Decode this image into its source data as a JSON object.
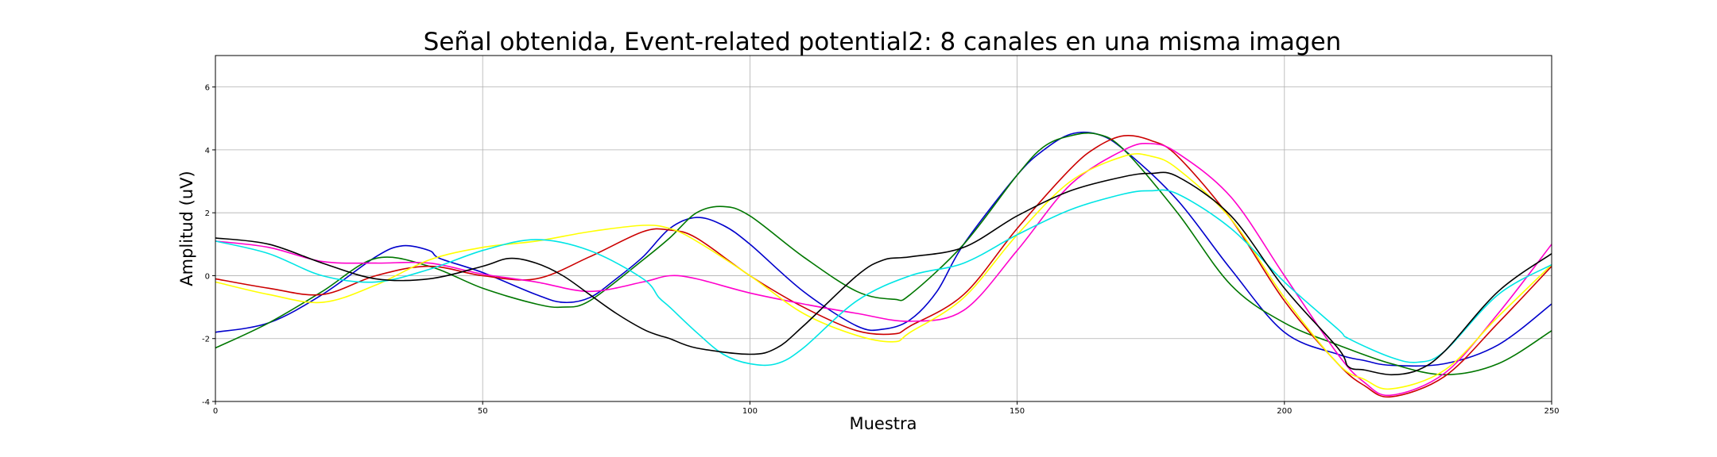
{
  "chart_data": {
    "type": "line",
    "title": "Señal obtenida, Event-related potential2: 8 canales en una misma imagen",
    "xlabel": "Muestra",
    "ylabel": "Amplitud (uV)",
    "xlim": [
      0,
      250
    ],
    "ylim": [
      -4,
      7
    ],
    "xticks": [
      0,
      50,
      100,
      150,
      200,
      250
    ],
    "yticks": [
      -4,
      -2,
      0,
      2,
      4,
      6
    ],
    "grid": true,
    "legend": "none",
    "series": [
      {
        "color": "#0000cc",
        "x": [
          0,
          10,
          20,
          30,
          35,
          40,
          42,
          50,
          60,
          65,
          70,
          75,
          80,
          85,
          90,
          95,
          100,
          110,
          120,
          125,
          130,
          135,
          140,
          150,
          155,
          160,
          165,
          170,
          180,
          190,
          200,
          210,
          215,
          220,
          230,
          240,
          250
        ],
        "y": [
          -1.8,
          -1.5,
          -0.6,
          0.6,
          0.95,
          0.8,
          0.55,
          0.1,
          -0.6,
          -0.85,
          -0.7,
          -0.1,
          0.6,
          1.5,
          1.85,
          1.6,
          1.0,
          -0.5,
          -1.6,
          -1.7,
          -1.4,
          -0.5,
          1.0,
          3.2,
          4.0,
          4.5,
          4.5,
          4.0,
          2.4,
          0.2,
          -1.8,
          -2.5,
          -2.7,
          -2.85,
          -2.8,
          -2.2,
          -0.9
        ]
      },
      {
        "color": "#007700",
        "x": [
          0,
          10,
          20,
          30,
          40,
          50,
          60,
          65,
          70,
          80,
          85,
          90,
          95,
          100,
          110,
          120,
          127,
          130,
          140,
          150,
          155,
          160,
          165,
          170,
          180,
          190,
          200,
          210,
          220,
          230,
          240,
          250
        ],
        "y": [
          -2.3,
          -1.5,
          -0.5,
          0.55,
          0.3,
          -0.4,
          -0.9,
          -1.0,
          -0.8,
          0.5,
          1.2,
          2.0,
          2.2,
          1.9,
          0.6,
          -0.5,
          -0.75,
          -0.6,
          1.0,
          3.2,
          4.1,
          4.45,
          4.5,
          4.0,
          2.0,
          -0.3,
          -1.5,
          -2.2,
          -2.8,
          -3.15,
          -2.8,
          -1.75
        ]
      },
      {
        "color": "#cc0000",
        "x": [
          0,
          10,
          20,
          30,
          40,
          50,
          60,
          70,
          80,
          85,
          90,
          100,
          110,
          120,
          127,
          130,
          140,
          150,
          160,
          165,
          170,
          175,
          180,
          190,
          200,
          210,
          215,
          220,
          230,
          240,
          250
        ],
        "y": [
          -0.1,
          -0.4,
          -0.6,
          0.0,
          0.3,
          0.0,
          -0.1,
          0.6,
          1.4,
          1.45,
          1.2,
          0.0,
          -1.0,
          -1.75,
          -1.85,
          -1.6,
          -0.6,
          1.5,
          3.4,
          4.1,
          4.45,
          4.3,
          3.8,
          1.8,
          -0.8,
          -2.8,
          -3.5,
          -3.85,
          -3.2,
          -1.5,
          0.3
        ]
      },
      {
        "color": "#ff00cc",
        "x": [
          0,
          10,
          20,
          30,
          40,
          50,
          60,
          70,
          80,
          85,
          90,
          100,
          110,
          120,
          130,
          140,
          150,
          160,
          170,
          175,
          180,
          190,
          200,
          210,
          215,
          220,
          230,
          240,
          250
        ],
        "y": [
          1.1,
          0.9,
          0.45,
          0.4,
          0.4,
          0.05,
          -0.2,
          -0.5,
          -0.2,
          0.0,
          -0.1,
          -0.55,
          -0.9,
          -1.2,
          -1.45,
          -1.1,
          0.8,
          2.9,
          4.0,
          4.2,
          3.9,
          2.5,
          0.0,
          -2.5,
          -3.4,
          -3.8,
          -3.1,
          -1.2,
          1.0
        ]
      },
      {
        "color": "#ffff00",
        "x": [
          0,
          10,
          20,
          30,
          40,
          50,
          60,
          70,
          80,
          85,
          90,
          100,
          110,
          120,
          127,
          130,
          140,
          150,
          160,
          170,
          175,
          180,
          190,
          200,
          210,
          215,
          220,
          230,
          240,
          250
        ],
        "y": [
          -0.2,
          -0.6,
          -0.85,
          -0.3,
          0.5,
          0.9,
          1.1,
          1.4,
          1.6,
          1.5,
          1.1,
          0.0,
          -1.2,
          -1.9,
          -2.1,
          -1.8,
          -0.7,
          1.3,
          3.0,
          3.8,
          3.8,
          3.4,
          1.8,
          -0.7,
          -2.8,
          -3.3,
          -3.6,
          -3.0,
          -1.3,
          0.35
        ]
      },
      {
        "color": "#00e5e5",
        "x": [
          0,
          10,
          20,
          30,
          40,
          50,
          60,
          70,
          80,
          83,
          85,
          90,
          95,
          100,
          105,
          110,
          120,
          130,
          140,
          150,
          160,
          170,
          175,
          180,
          190,
          200,
          210,
          212,
          220,
          225,
          230,
          240,
          250
        ],
        "y": [
          1.1,
          0.7,
          0.0,
          -0.2,
          0.2,
          0.8,
          1.15,
          0.8,
          -0.1,
          -0.7,
          -1.0,
          -1.8,
          -2.5,
          -2.8,
          -2.8,
          -2.3,
          -0.8,
          0.0,
          0.4,
          1.3,
          2.1,
          2.6,
          2.7,
          2.6,
          1.5,
          -0.2,
          -1.7,
          -2.0,
          -2.6,
          -2.75,
          -2.4,
          -0.6,
          0.35
        ]
      },
      {
        "color": "#000000",
        "x": [
          0,
          10,
          20,
          30,
          40,
          50,
          55,
          60,
          65,
          70,
          75,
          80,
          83,
          85,
          90,
          100,
          105,
          110,
          120,
          125,
          130,
          140,
          150,
          160,
          170,
          175,
          180,
          190,
          200,
          210,
          212,
          215,
          220,
          225,
          230,
          240,
          250
        ],
        "y": [
          1.2,
          1.0,
          0.4,
          -0.1,
          -0.1,
          0.3,
          0.55,
          0.4,
          0.0,
          -0.6,
          -1.2,
          -1.7,
          -1.9,
          -2.0,
          -2.3,
          -2.5,
          -2.3,
          -1.6,
          0.0,
          0.5,
          0.6,
          0.9,
          1.9,
          2.7,
          3.15,
          3.25,
          3.15,
          1.9,
          -0.4,
          -2.3,
          -2.9,
          -3.0,
          -3.15,
          -3.0,
          -2.4,
          -0.5,
          0.7
        ]
      }
    ]
  }
}
